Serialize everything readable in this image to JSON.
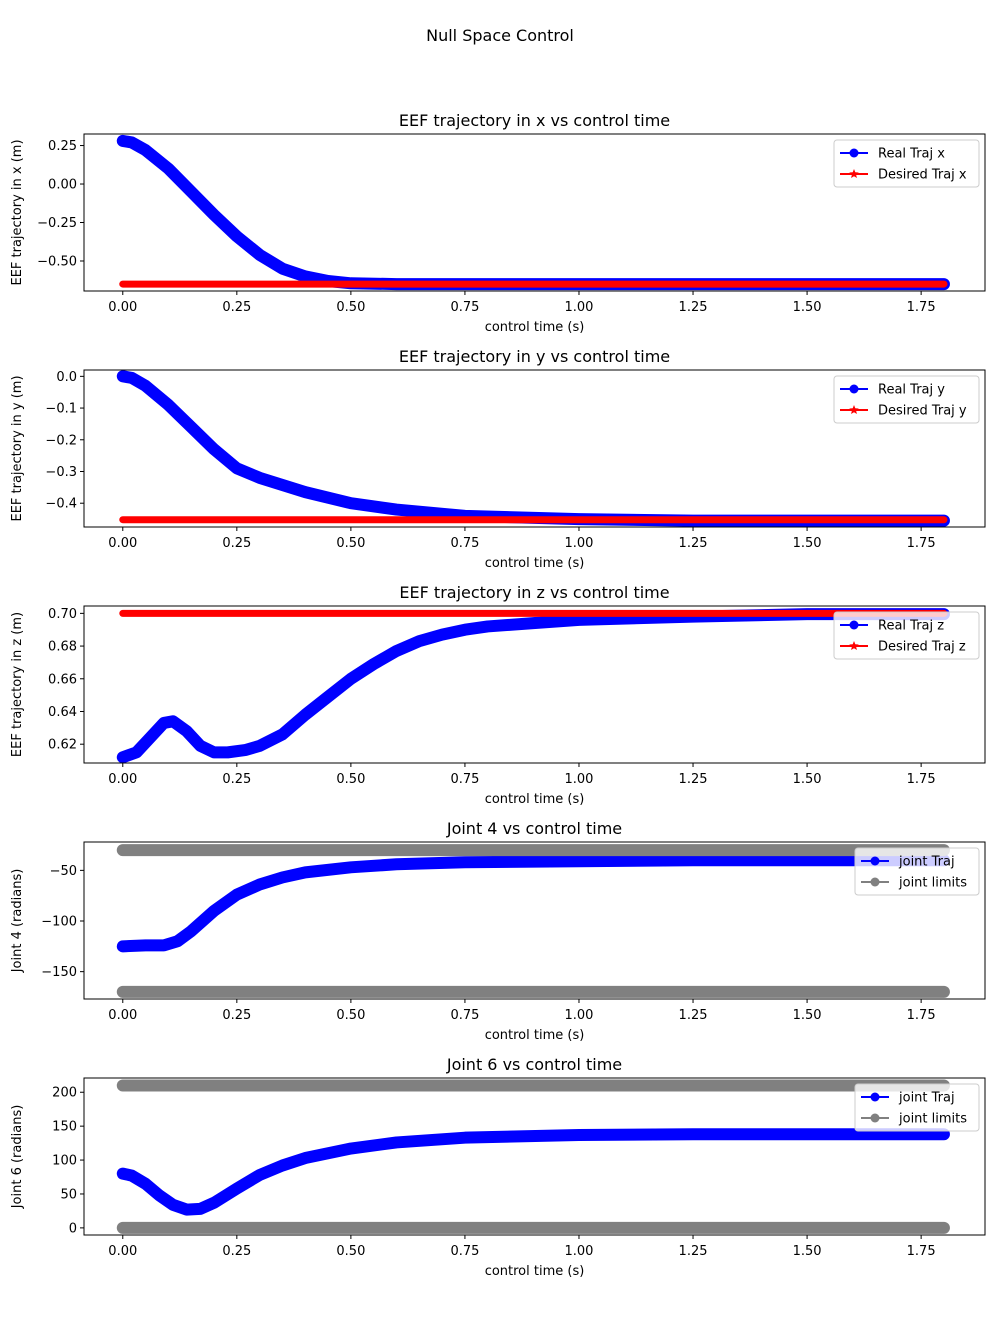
{
  "suptitle": "Null Space Control",
  "chart_data": [
    {
      "type": "line",
      "title": "EEF trajectory in x vs control time",
      "xlabel": "control time (s)",
      "ylabel": "EEF trajectory in x (m)",
      "xlim": [
        -0.085,
        1.89
      ],
      "ylim": [
        -0.695,
        0.325
      ],
      "xticks": [
        0.0,
        0.25,
        0.5,
        0.75,
        1.0,
        1.25,
        1.5,
        1.75
      ],
      "xtick_labels": [
        "0.00",
        "0.25",
        "0.50",
        "0.75",
        "1.00",
        "1.25",
        "1.50",
        "1.75"
      ],
      "yticks": [
        0.25,
        0.0,
        -0.25,
        -0.5
      ],
      "ytick_labels": [
        "0.25",
        "0.00",
        "−0.25",
        "−0.50"
      ],
      "legend_position": "upper right",
      "series": [
        {
          "name": "Real Traj x",
          "color": "#0000ff",
          "marker": "circle",
          "x": [
            0.0,
            0.02,
            0.05,
            0.1,
            0.15,
            0.2,
            0.25,
            0.3,
            0.35,
            0.4,
            0.45,
            0.5,
            0.6,
            0.8,
            1.0,
            1.25,
            1.5,
            1.8
          ],
          "y": [
            0.28,
            0.27,
            0.22,
            0.1,
            -0.05,
            -0.2,
            -0.34,
            -0.46,
            -0.55,
            -0.6,
            -0.63,
            -0.645,
            -0.65,
            -0.65,
            -0.65,
            -0.65,
            -0.65,
            -0.65
          ]
        },
        {
          "name": "Desired Traj x",
          "color": "#ff0000",
          "marker": "star",
          "x": [
            0.0,
            1.8
          ],
          "y": [
            -0.65,
            -0.65
          ]
        }
      ]
    },
    {
      "type": "line",
      "title": "EEF trajectory in y vs control time",
      "xlabel": "control time (s)",
      "ylabel": "EEF trajectory in y (m)",
      "xlim": [
        -0.085,
        1.89
      ],
      "ylim": [
        -0.475,
        0.02
      ],
      "xticks": [
        0.0,
        0.25,
        0.5,
        0.75,
        1.0,
        1.25,
        1.5,
        1.75
      ],
      "xtick_labels": [
        "0.00",
        "0.25",
        "0.50",
        "0.75",
        "1.00",
        "1.25",
        "1.50",
        "1.75"
      ],
      "yticks": [
        0.0,
        -0.1,
        -0.2,
        -0.3,
        -0.4
      ],
      "ytick_labels": [
        "0.0",
        "−0.1",
        "−0.2",
        "−0.3",
        "−0.4"
      ],
      "legend_position": "upper right",
      "series": [
        {
          "name": "Real Traj y",
          "color": "#0000ff",
          "marker": "circle",
          "x": [
            0.0,
            0.02,
            0.05,
            0.1,
            0.15,
            0.2,
            0.25,
            0.3,
            0.4,
            0.5,
            0.6,
            0.75,
            1.0,
            1.25,
            1.5,
            1.8
          ],
          "y": [
            0.0,
            -0.005,
            -0.03,
            -0.09,
            -0.16,
            -0.23,
            -0.29,
            -0.32,
            -0.365,
            -0.4,
            -0.42,
            -0.44,
            -0.45,
            -0.455,
            -0.455,
            -0.455
          ]
        },
        {
          "name": "Desired Traj y",
          "color": "#ff0000",
          "marker": "star",
          "x": [
            0.0,
            1.8
          ],
          "y": [
            -0.452,
            -0.452
          ]
        }
      ]
    },
    {
      "type": "line",
      "title": "EEF trajectory in z vs control time",
      "xlabel": "control time (s)",
      "ylabel": "EEF trajectory in z (m)",
      "xlim": [
        -0.085,
        1.89
      ],
      "ylim": [
        0.6085,
        0.7045
      ],
      "xticks": [
        0.0,
        0.25,
        0.5,
        0.75,
        1.0,
        1.25,
        1.5,
        1.75
      ],
      "xtick_labels": [
        "0.00",
        "0.25",
        "0.50",
        "0.75",
        "1.00",
        "1.25",
        "1.50",
        "1.75"
      ],
      "yticks": [
        0.62,
        0.64,
        0.66,
        0.68,
        0.7
      ],
      "ytick_labels": [
        "0.62",
        "0.64",
        "0.66",
        "0.68",
        "0.70"
      ],
      "legend_position": "upper right",
      "series": [
        {
          "name": "Real Traj z",
          "color": "#0000ff",
          "marker": "circle",
          "x": [
            0.0,
            0.03,
            0.06,
            0.09,
            0.11,
            0.14,
            0.17,
            0.2,
            0.23,
            0.27,
            0.3,
            0.35,
            0.4,
            0.45,
            0.5,
            0.55,
            0.6,
            0.65,
            0.7,
            0.75,
            0.8,
            0.9,
            1.0,
            1.25,
            1.5,
            1.8
          ],
          "y": [
            0.612,
            0.615,
            0.624,
            0.633,
            0.634,
            0.628,
            0.619,
            0.615,
            0.615,
            0.6165,
            0.619,
            0.626,
            0.638,
            0.649,
            0.66,
            0.669,
            0.677,
            0.683,
            0.687,
            0.69,
            0.692,
            0.694,
            0.696,
            0.698,
            0.6995,
            0.6995
          ]
        },
        {
          "name": "Desired Traj z",
          "color": "#ff0000",
          "marker": "star",
          "x": [
            0.0,
            1.8
          ],
          "y": [
            0.7,
            0.7
          ]
        }
      ]
    },
    {
      "type": "line",
      "title": "Joint 4 vs control time",
      "xlabel": "control time (s)",
      "ylabel": "Joint 4 (radians)",
      "xlim": [
        -0.085,
        1.89
      ],
      "ylim": [
        -177,
        -22
      ],
      "xticks": [
        0.0,
        0.25,
        0.5,
        0.75,
        1.0,
        1.25,
        1.5,
        1.75
      ],
      "xtick_labels": [
        "0.00",
        "0.25",
        "0.50",
        "0.75",
        "1.00",
        "1.25",
        "1.50",
        "1.75"
      ],
      "yticks": [
        -50,
        -100,
        -150
      ],
      "ytick_labels": [
        "−50",
        "−100",
        "−150"
      ],
      "legend_position": "upper right",
      "series": [
        {
          "name": "joint Traj",
          "color": "#0000ff",
          "marker": "circle",
          "x": [
            0.0,
            0.05,
            0.09,
            0.12,
            0.15,
            0.2,
            0.25,
            0.3,
            0.35,
            0.4,
            0.5,
            0.6,
            0.75,
            1.0,
            1.25,
            1.5,
            1.8
          ],
          "y": [
            -125,
            -124,
            -124,
            -120,
            -110,
            -90,
            -74,
            -64,
            -57,
            -52,
            -47,
            -44,
            -42,
            -41,
            -40,
            -40,
            -40
          ]
        },
        {
          "name": "joint limits",
          "color": "#808080",
          "marker": "circle",
          "segments": [
            {
              "x": [
                0.0,
                1.8
              ],
              "y": [
                -30,
                -30
              ]
            },
            {
              "x": [
                0.0,
                1.8
              ],
              "y": [
                -170,
                -170
              ]
            }
          ]
        }
      ]
    },
    {
      "type": "line",
      "title": "Joint 6 vs control time",
      "xlabel": "control time (s)",
      "ylabel": "Joint 6 (radians)",
      "xlim": [
        -0.085,
        1.89
      ],
      "ylim": [
        -10.5,
        221
      ],
      "xticks": [
        0.0,
        0.25,
        0.5,
        0.75,
        1.0,
        1.25,
        1.5,
        1.75
      ],
      "xtick_labels": [
        "0.00",
        "0.25",
        "0.50",
        "0.75",
        "1.00",
        "1.25",
        "1.50",
        "1.75"
      ],
      "yticks": [
        0,
        50,
        100,
        150,
        200
      ],
      "ytick_labels": [
        "0",
        "50",
        "100",
        "150",
        "200"
      ],
      "legend_position": "upper right",
      "series": [
        {
          "name": "joint Traj",
          "color": "#0000ff",
          "marker": "circle",
          "x": [
            0.0,
            0.02,
            0.05,
            0.08,
            0.11,
            0.14,
            0.17,
            0.2,
            0.25,
            0.3,
            0.35,
            0.4,
            0.5,
            0.6,
            0.75,
            1.0,
            1.25,
            1.5,
            1.8
          ],
          "y": [
            80,
            77,
            65,
            48,
            34,
            27,
            28,
            37,
            58,
            78,
            92,
            103,
            117,
            126,
            133,
            137,
            138,
            138,
            138
          ]
        },
        {
          "name": "joint limits",
          "color": "#808080",
          "marker": "circle",
          "segments": [
            {
              "x": [
                0.0,
                1.8
              ],
              "y": [
                210,
                210
              ]
            },
            {
              "x": [
                0.0,
                1.8
              ],
              "y": [
                0,
                0
              ]
            }
          ]
        }
      ]
    }
  ]
}
